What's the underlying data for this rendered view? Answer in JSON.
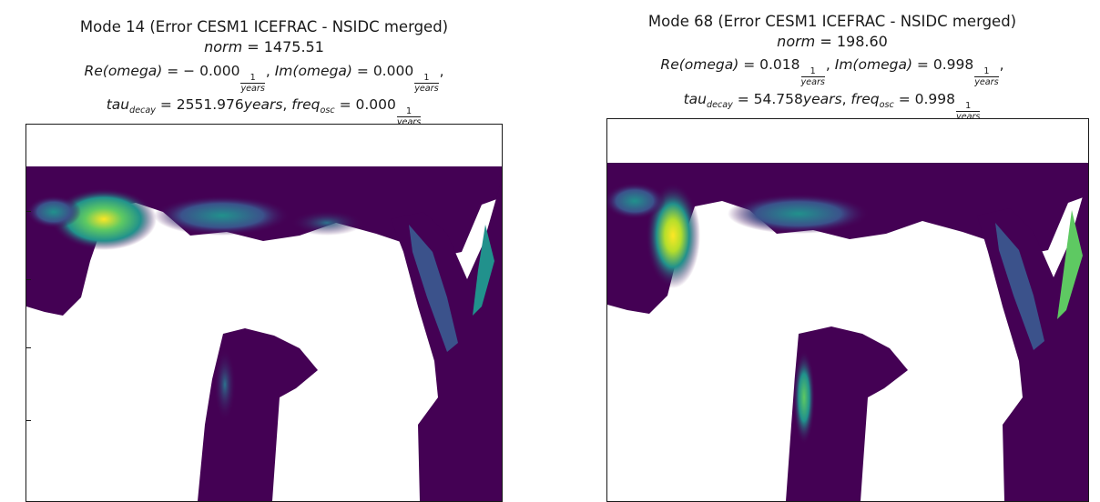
{
  "chart_data": [
    {
      "type": "heatmap",
      "title_line1": "Mode 14 (Error CESM1 ICEFRAC - NSIDC merged)",
      "norm_label": "norm",
      "norm_value": "1475.51",
      "re_label": "Re(omega)",
      "re_value": "− 0.000",
      "im_label": "Im(omega)",
      "im_value": "0.000",
      "tau_label": "tau",
      "tau_sub": "decay",
      "tau_value": "2551.976",
      "tau_unit": "years",
      "freq_label": "freq",
      "freq_sub": "osc",
      "freq_value": "0.000",
      "unit_num": "1",
      "unit_den": "years",
      "colormap": "viridis",
      "hotspots": [
        {
          "region": "west-high-lat",
          "value": 0.85
        },
        {
          "region": "central-high-lat",
          "value": 0.45
        },
        {
          "region": "east-arm",
          "value": 0.5
        }
      ]
    },
    {
      "type": "heatmap",
      "title_line1": "Mode 68 (Error CESM1 ICEFRAC - NSIDC merged)",
      "norm_label": "norm",
      "norm_value": "198.60",
      "re_label": "Re(omega)",
      "re_value": "0.018",
      "im_label": "Im(omega)",
      "im_value": "0.998",
      "tau_label": "tau",
      "tau_sub": "decay",
      "tau_value": "54.758",
      "tau_unit": "years",
      "freq_label": "freq",
      "freq_sub": "osc",
      "freq_value": "0.998",
      "unit_num": "1",
      "unit_den": "years",
      "colormap": "viridis",
      "hotspots": [
        {
          "region": "west-high-lat",
          "value": 0.95
        },
        {
          "region": "central-high-lat",
          "value": 0.45
        },
        {
          "region": "south-strip",
          "value": 0.75
        },
        {
          "region": "east-arm",
          "value": 0.6
        }
      ]
    }
  ],
  "colors": {
    "ocean_field": "#440154",
    "viridis_low": "#3b528b",
    "viridis_mid": "#21918c",
    "viridis_high": "#5ec962",
    "viridis_top": "#fde725",
    "land_mask": "#ffffff"
  }
}
